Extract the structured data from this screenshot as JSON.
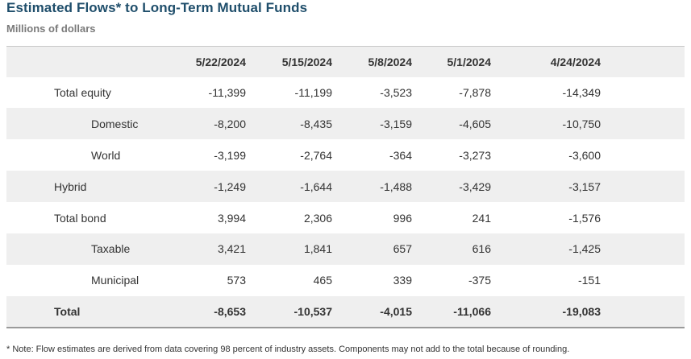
{
  "title": "Estimated Flows* to Long-Term Mutual Funds",
  "subtitle": "Millions of dollars",
  "columns": [
    "5/22/2024",
    "5/15/2024",
    "5/8/2024",
    "5/1/2024",
    "4/24/2024"
  ],
  "rows": [
    {
      "label": "Total equity",
      "values": [
        "-11,399",
        "-11,199",
        "-3,523",
        "-7,878",
        "-14,349"
      ]
    },
    {
      "label": "Domestic",
      "values": [
        "-8,200",
        "-8,435",
        "-3,159",
        "-4,605",
        "-10,750"
      ]
    },
    {
      "label": "World",
      "values": [
        "-3,199",
        "-2,764",
        "-364",
        "-3,273",
        "-3,600"
      ]
    },
    {
      "label": "Hybrid",
      "values": [
        "-1,249",
        "-1,644",
        "-1,488",
        "-3,429",
        "-3,157"
      ]
    },
    {
      "label": "Total bond",
      "values": [
        "3,994",
        "2,306",
        "996",
        "241",
        "-1,576"
      ]
    },
    {
      "label": "Taxable",
      "values": [
        "3,421",
        "1,841",
        "657",
        "616",
        "-1,425"
      ]
    },
    {
      "label": "Municipal",
      "values": [
        "573",
        "465",
        "339",
        "-375",
        "-151"
      ]
    },
    {
      "label": "Total",
      "values": [
        "-8,653",
        "-10,537",
        "-4,015",
        "-11,066",
        "-19,083"
      ]
    }
  ],
  "footnote": "* Note: Flow estimates are derived from data covering 98 percent of industry assets. Components may not add to the total because of rounding."
}
